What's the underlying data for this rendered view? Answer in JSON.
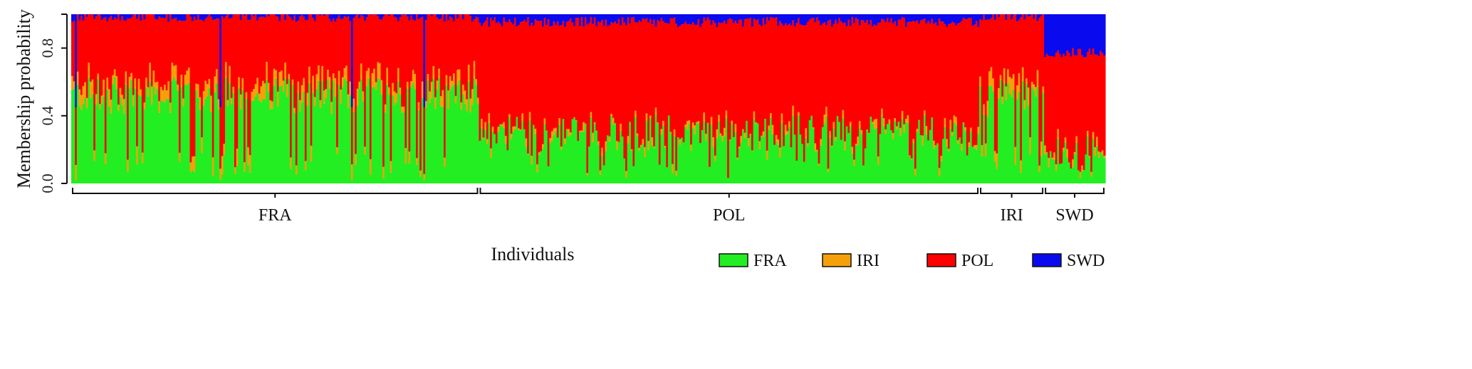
{
  "chart_data": {
    "type": "bar",
    "stacked": true,
    "title": "",
    "ylabel": "Membership probability",
    "xlabel": "Individuals",
    "ylim": [
      0,
      1
    ],
    "yticks": [
      0.0,
      0.4,
      0.8
    ],
    "ytick_labels": [
      "0.0",
      "0.4",
      "0.8"
    ],
    "legend_position": "bottom-right",
    "series": [
      {
        "name": "FRA",
        "color": "#22ee22"
      },
      {
        "name": "IRI",
        "color": "#f5a00a"
      },
      {
        "name": "POL",
        "color": "#ff0000"
      },
      {
        "name": "SWD",
        "color": "#0a0aee"
      }
    ],
    "groups": [
      {
        "label": "FRA",
        "n": 220,
        "fra_mean": 0.52,
        "iri_mean": 0.07,
        "swd_mean": 0.01
      },
      {
        "label": "POL",
        "n": 270,
        "fra_mean": 0.3,
        "iri_mean": 0.02,
        "swd_mean": 0.04
      },
      {
        "label": "IRI",
        "n": 35,
        "fra_mean": 0.5,
        "iri_mean": 0.07,
        "swd_mean": 0.01
      },
      {
        "label": "SWD",
        "n": 33,
        "fra_mean": 0.18,
        "iri_mean": 0.02,
        "swd_mean": 0.22
      }
    ]
  }
}
